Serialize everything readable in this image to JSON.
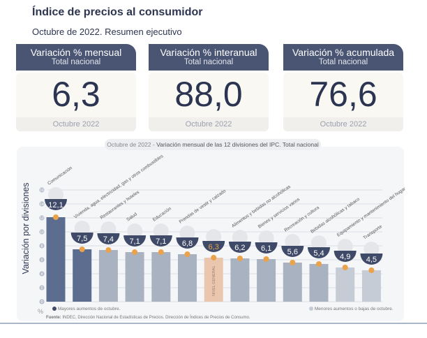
{
  "header": {
    "title": "Índice de precios al consumidor",
    "subtitle": "Octubre de 2022. Resumen ejecutivo"
  },
  "cards": [
    {
      "title": "Variación % mensual",
      "scope": "Total nacional",
      "value": "6,3",
      "period": "Octubre 2022"
    },
    {
      "title": "Variación % interanual",
      "scope": "Total nacional",
      "value": "88,0",
      "period": "Octubre 2022"
    },
    {
      "title": "Variación % acumulada",
      "scope": "Total nacional",
      "value": "76,6",
      "period": "Octubre 2022"
    }
  ],
  "chart_data": {
    "type": "bar",
    "title_prefix": "Octubre de 2022 - ",
    "title": "Variación mensual de las 12 divisiones del IPC. Total nacional",
    "ylabel": "Variación por divisiones",
    "yunit": "%",
    "ylim": [
      0,
      16
    ],
    "yticks": [
      0,
      2,
      4,
      6,
      8,
      10,
      12,
      14,
      16
    ],
    "categories": [
      "Comunicación",
      "Vivienda, agua, electricidad, gas y otros combustibles",
      "Restaurantes y hoteles",
      "Salud",
      "Educación",
      "Prendas de vestir y calzado",
      "NIVEL GENERAL",
      "Alimentos y bebidas no alcohólicas",
      "Bienes y servicios varios",
      "Recreación y cultura",
      "Bebidas alcohólicas y tabaco",
      "Equipamiento y mantenimiento del hogar",
      "Transporte"
    ],
    "values": [
      12.1,
      7.5,
      7.4,
      7.1,
      7.1,
      6.8,
      6.3,
      6.2,
      6.1,
      5.6,
      5.4,
      4.9,
      4.5
    ],
    "value_labels": [
      "12,1",
      "7,5",
      "7,4",
      "7,1",
      "7,1",
      "6,8",
      "6,3",
      "6,2",
      "6,1",
      "5,6",
      "5,4",
      "4,9",
      "4,5"
    ],
    "groups": [
      "high",
      "high",
      "mid",
      "mid",
      "mid",
      "mid",
      "general",
      "mid",
      "mid",
      "mid",
      "mid",
      "low",
      "low"
    ],
    "general_label": "NIVEL GENERAL",
    "legend": {
      "high": "Mayores aumentos de octubre.",
      "low": "Menores aumentos o bajas de octubre."
    },
    "colors": {
      "high": "#5d6d8f",
      "mid": "#a9b2c1",
      "low": "#c6ccd6",
      "general": "#ebc6ae",
      "dot": "#eaa24b",
      "badge": "#3f4a68"
    }
  },
  "source": {
    "label": "Fuente:",
    "text": " INDEC, Dirección Nacional de Estadísticas de Precios. Dirección de Índices de Precios de Consumo."
  }
}
